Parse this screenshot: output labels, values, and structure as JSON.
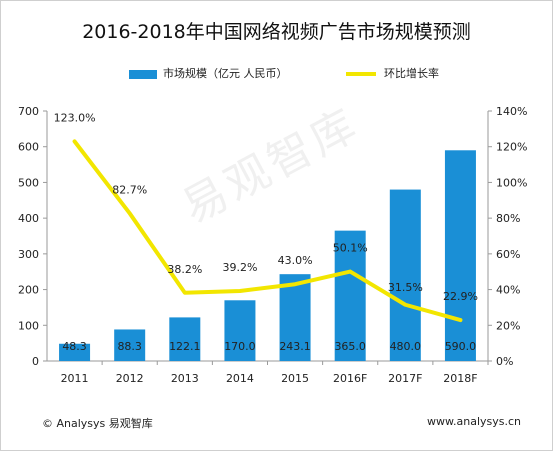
{
  "chart_data": {
    "type": "bar",
    "title": "2016-2018年中国网络视频广告市场规模预测",
    "categories": [
      "2011",
      "2012",
      "2013",
      "2014",
      "2015",
      "2016F",
      "2017F",
      "2018F"
    ],
    "series": [
      {
        "name": "市场规模（亿元 人民币）",
        "type": "bar",
        "axis": "left",
        "color": "#1a8fd6",
        "values": [
          48.3,
          88.3,
          122.1,
          170.0,
          243.1,
          365.0,
          480.0,
          590.0
        ],
        "labels": [
          "48.3",
          "88.3",
          "122.1",
          "170.0",
          "243.1",
          "365.0",
          "480.0",
          "590.0"
        ]
      },
      {
        "name": "环比增长率",
        "type": "line",
        "axis": "right",
        "color": "#f2e600",
        "values": [
          123.0,
          82.7,
          38.2,
          39.2,
          43.0,
          50.1,
          31.5,
          22.9
        ],
        "labels": [
          "123.0%",
          "82.7%",
          "38.2%",
          "39.2%",
          "43.0%",
          "50.1%",
          "31.5%",
          "22.9%"
        ]
      }
    ],
    "y_left": {
      "range": [
        0,
        700
      ],
      "ticks": [
        "0",
        "100",
        "200",
        "300",
        "400",
        "500",
        "600",
        "700"
      ]
    },
    "y_right": {
      "range": [
        0,
        140
      ],
      "unit": "%",
      "ticks": [
        "0%",
        "20%",
        "40%",
        "60%",
        "80%",
        "100%",
        "120%",
        "140%"
      ]
    },
    "legend_position": "top",
    "grid": false
  },
  "watermark": "易观智库",
  "footer": {
    "source": "© Analysys 易观智库",
    "website": "www.analysys.cn"
  }
}
